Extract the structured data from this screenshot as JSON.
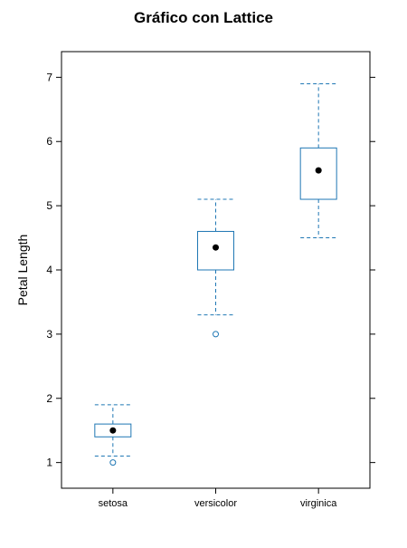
{
  "chart_data": {
    "type": "boxplot",
    "title": "Gráfico con Lattice",
    "xlabel": "",
    "ylabel": "Petal Length",
    "categories": [
      "setosa",
      "versicolor",
      "virginica"
    ],
    "ylim": [
      0.6,
      7.4
    ],
    "yticks": [
      1,
      2,
      3,
      4,
      5,
      6,
      7
    ],
    "grid": false,
    "colors": {
      "box": "#1f77b4",
      "whisker": "#1f77b4",
      "outlier": "#1f77b4",
      "median": "#000000",
      "axis": "#000000"
    },
    "boxes": [
      {
        "category": "setosa",
        "whisker_low": 1.1,
        "q1": 1.4,
        "median": 1.5,
        "q3": 1.6,
        "whisker_high": 1.9,
        "outliers": [
          1.0
        ]
      },
      {
        "category": "versicolor",
        "whisker_low": 3.3,
        "q1": 4.0,
        "median": 4.35,
        "q3": 4.6,
        "whisker_high": 5.1,
        "outliers": [
          3.0
        ]
      },
      {
        "category": "virginica",
        "whisker_low": 4.5,
        "q1": 5.1,
        "median": 5.55,
        "q3": 5.9,
        "whisker_high": 6.9,
        "outliers": []
      }
    ]
  }
}
